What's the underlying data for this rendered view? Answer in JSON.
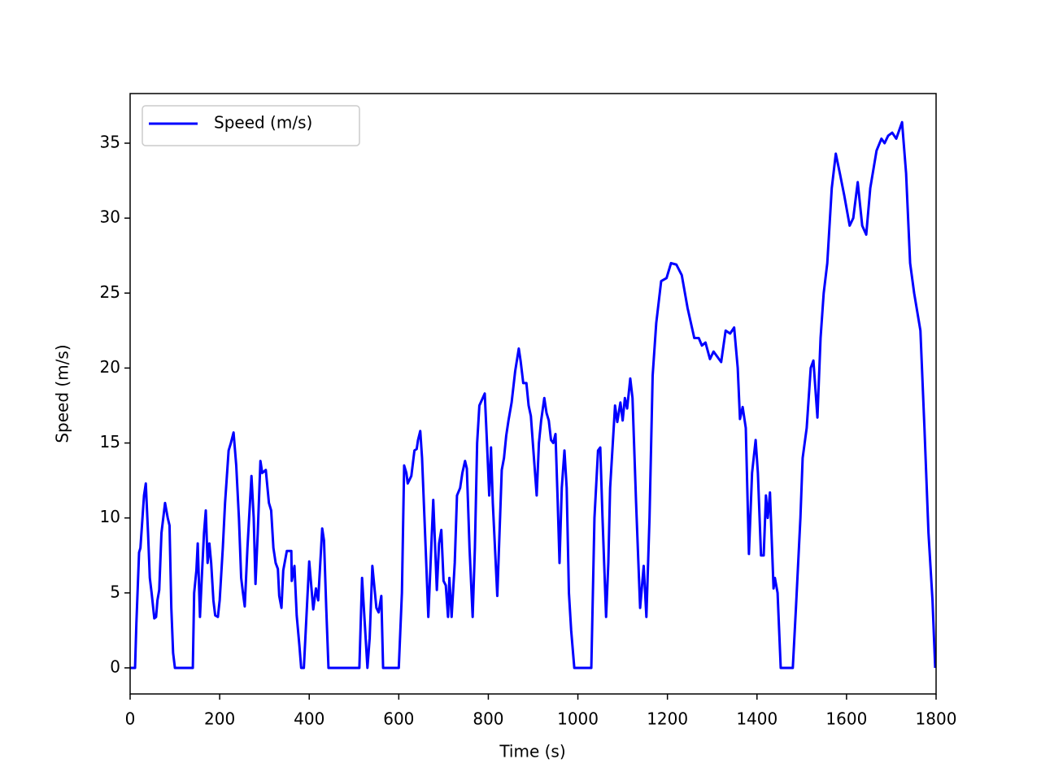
{
  "chart_data": {
    "type": "line",
    "x_label": "Time (s)",
    "y_label": "Speed (m/s)",
    "xlim": [
      0,
      1800
    ],
    "ylim": [
      -1.74,
      38.31
    ],
    "xticks": [
      0,
      200,
      400,
      600,
      800,
      1000,
      1200,
      1400,
      1600,
      1800
    ],
    "yticks": [
      0,
      5,
      10,
      15,
      20,
      25,
      30,
      35
    ],
    "grid": false,
    "legend": "upper left",
    "x": [
      0,
      11,
      14,
      20,
      23,
      31,
      35,
      40,
      44,
      48,
      54,
      58,
      61,
      65,
      70,
      78,
      84,
      88,
      92,
      96,
      100,
      140,
      143,
      148,
      151,
      156,
      160,
      165,
      169,
      173,
      177,
      181,
      186,
      190,
      196,
      200,
      207,
      212,
      220,
      225,
      231,
      237,
      243,
      248,
      252,
      256,
      262,
      271,
      276,
      280,
      285,
      291,
      295,
      303,
      310,
      315,
      320,
      325,
      330,
      333,
      338,
      342,
      350,
      360,
      361,
      367,
      372,
      378,
      382,
      388,
      400,
      409,
      415,
      420,
      429,
      433,
      438,
      443,
      512,
      518,
      530,
      535,
      541,
      550,
      555,
      561,
      565,
      600,
      607,
      612,
      617,
      620,
      628,
      635,
      640,
      643,
      648,
      652,
      660,
      666,
      677,
      685,
      690,
      695,
      700,
      705,
      710,
      713,
      718,
      725,
      730,
      737,
      742,
      748,
      752,
      758,
      765,
      770,
      775,
      780,
      792,
      797,
      802,
      806,
      810,
      820,
      825,
      830,
      835,
      840,
      845,
      852,
      860,
      868,
      872,
      878,
      885,
      890,
      895,
      908,
      913,
      918,
      925,
      930,
      935,
      940,
      945,
      950,
      955,
      959,
      964,
      970,
      975,
      980,
      985,
      992,
      1030,
      1037,
      1045,
      1050,
      1055,
      1063,
      1068,
      1072,
      1083,
      1088,
      1095,
      1100,
      1105,
      1110,
      1117,
      1122,
      1130,
      1139,
      1147,
      1153,
      1160,
      1167,
      1175,
      1186,
      1198,
      1208,
      1220,
      1232,
      1245,
      1260,
      1270,
      1277,
      1285,
      1295,
      1303,
      1320,
      1330,
      1340,
      1349,
      1357,
      1362,
      1368,
      1375,
      1382,
      1389,
      1397,
      1402,
      1409,
      1415,
      1420,
      1424,
      1429,
      1437,
      1440,
      1446,
      1453,
      1480,
      1487,
      1497,
      1502,
      1511,
      1520,
      1526,
      1535,
      1542,
      1549,
      1557,
      1567,
      1576,
      1585,
      1595,
      1607,
      1615,
      1625,
      1635,
      1644,
      1653,
      1667,
      1678,
      1685,
      1693,
      1702,
      1711,
      1724,
      1733,
      1742,
      1751,
      1765,
      1774,
      1783,
      1792,
      1798
    ],
    "series": [
      {
        "name": "Speed (m/s)",
        "color": "#0000ff",
        "values": [
          0,
          0,
          3,
          7.7,
          8,
          11.5,
          12.3,
          9,
          6,
          5,
          3.3,
          3.4,
          4.5,
          5.2,
          9,
          11,
          10,
          9.5,
          4,
          1,
          0,
          0,
          5,
          6.5,
          8.3,
          3.4,
          6,
          9,
          10.5,
          7,
          8.3,
          7,
          4.5,
          3.5,
          3.4,
          4.5,
          8,
          11,
          14.5,
          15,
          15.7,
          13.5,
          10,
          6,
          5,
          4.1,
          8,
          12.8,
          10,
          5.6,
          9,
          13.8,
          13,
          13.2,
          11,
          10.5,
          8,
          7,
          6.6,
          4.8,
          4,
          6.5,
          7.8,
          7.8,
          5.8,
          6.8,
          3.5,
          1.5,
          0,
          0,
          7.1,
          3.9,
          5.3,
          4.5,
          9.3,
          8.5,
          4,
          0,
          0,
          6,
          0,
          2,
          6.8,
          4,
          3.7,
          4.8,
          0,
          0,
          5,
          13.5,
          13,
          12.3,
          12.8,
          14.5,
          14.6,
          15.2,
          15.8,
          14,
          8,
          3.4,
          11.2,
          5.2,
          8.3,
          9.2,
          5.8,
          5.5,
          3.4,
          6,
          3.4,
          7,
          11.5,
          12,
          13,
          13.8,
          13.3,
          8,
          3.4,
          8,
          15,
          17.5,
          18.3,
          15,
          11.5,
          14.7,
          11,
          4.8,
          9,
          13.2,
          14,
          15.5,
          16.5,
          17.7,
          19.8,
          21.3,
          20.5,
          19,
          19,
          17.5,
          16.8,
          11.5,
          15,
          16.5,
          18,
          17,
          16.5,
          15.2,
          15,
          15.6,
          11,
          7,
          12,
          14.5,
          12,
          5,
          2.5,
          0,
          0,
          10,
          14.5,
          14.7,
          10,
          3.4,
          7,
          12,
          17.5,
          16.4,
          17.7,
          16.5,
          18,
          17.3,
          19.3,
          18,
          11,
          4,
          6.8,
          3.4,
          10,
          19.5,
          23,
          25.8,
          26,
          27,
          26.9,
          26.2,
          24,
          22,
          22,
          21.5,
          21.7,
          20.6,
          21.1,
          20.4,
          22.5,
          22.3,
          22.7,
          20,
          16.6,
          17.4,
          16,
          7.6,
          13,
          15.2,
          13,
          7.5,
          7.5,
          11.5,
          10,
          11.7,
          5.3,
          6,
          5,
          0,
          0,
          4,
          10,
          14,
          16,
          20,
          20.5,
          16.7,
          22,
          25,
          27,
          32,
          34.3,
          33,
          31.5,
          29.5,
          30,
          32.4,
          29.5,
          28.9,
          32,
          34.5,
          35.3,
          35,
          35.5,
          35.7,
          35.3,
          36.4,
          33,
          27,
          25,
          22.5,
          16,
          9,
          4.5,
          0
        ]
      }
    ]
  }
}
